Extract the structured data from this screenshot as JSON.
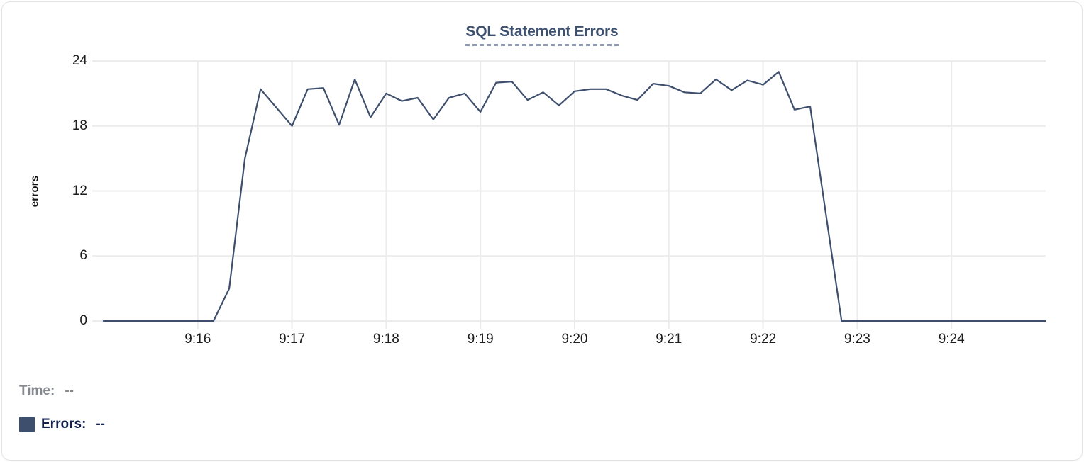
{
  "chart_data": {
    "type": "line",
    "title": "SQL Statement Errors",
    "ylabel": "errors",
    "xlabel": "",
    "ylim": [
      0,
      24
    ],
    "y_ticks": [
      0,
      6,
      12,
      18,
      24
    ],
    "x_ticks": [
      "9:16",
      "9:17",
      "9:18",
      "9:19",
      "9:20",
      "9:21",
      "9:22",
      "9:23",
      "9:24"
    ],
    "x_domain": [
      "9:15:00",
      "9:25:00"
    ],
    "grid": true,
    "legend_position": "bottom-left",
    "series": [
      {
        "name": "Errors",
        "color": "#3E4F6D",
        "points": [
          [
            "9:15:00",
            0
          ],
          [
            "9:15:10",
            0
          ],
          [
            "9:15:20",
            0
          ],
          [
            "9:15:30",
            0
          ],
          [
            "9:15:40",
            0
          ],
          [
            "9:15:50",
            0
          ],
          [
            "9:16:00",
            0
          ],
          [
            "9:16:10",
            0
          ],
          [
            "9:16:20",
            3
          ],
          [
            "9:16:30",
            15
          ],
          [
            "9:16:40",
            21.4
          ],
          [
            "9:16:50",
            19.7
          ],
          [
            "9:17:00",
            18
          ],
          [
            "9:17:10",
            21.4
          ],
          [
            "9:17:20",
            21.5
          ],
          [
            "9:17:30",
            18.1
          ],
          [
            "9:17:40",
            22.3
          ],
          [
            "9:17:50",
            18.8
          ],
          [
            "9:18:00",
            21
          ],
          [
            "9:18:10",
            20.3
          ],
          [
            "9:18:20",
            20.6
          ],
          [
            "9:18:30",
            18.6
          ],
          [
            "9:18:40",
            20.6
          ],
          [
            "9:18:50",
            21
          ],
          [
            "9:19:00",
            19.3
          ],
          [
            "9:19:10",
            22
          ],
          [
            "9:19:20",
            22.1
          ],
          [
            "9:19:30",
            20.4
          ],
          [
            "9:19:40",
            21.1
          ],
          [
            "9:19:50",
            19.9
          ],
          [
            "9:20:00",
            21.2
          ],
          [
            "9:20:10",
            21.4
          ],
          [
            "9:20:20",
            21.4
          ],
          [
            "9:20:30",
            20.8
          ],
          [
            "9:20:40",
            20.4
          ],
          [
            "9:20:50",
            21.9
          ],
          [
            "9:21:00",
            21.7
          ],
          [
            "9:21:10",
            21.1
          ],
          [
            "9:21:20",
            21
          ],
          [
            "9:21:30",
            22.3
          ],
          [
            "9:21:40",
            21.3
          ],
          [
            "9:21:50",
            22.2
          ],
          [
            "9:22:00",
            21.8
          ],
          [
            "9:22:10",
            23
          ],
          [
            "9:22:20",
            19.5
          ],
          [
            "9:22:30",
            19.8
          ],
          [
            "9:22:40",
            9.9
          ],
          [
            "9:22:50",
            0
          ],
          [
            "9:23:00",
            0
          ],
          [
            "9:23:10",
            0
          ],
          [
            "9:23:20",
            0
          ],
          [
            "9:23:30",
            0
          ],
          [
            "9:23:40",
            0
          ],
          [
            "9:23:50",
            0
          ],
          [
            "9:24:00",
            0
          ],
          [
            "9:24:10",
            0
          ],
          [
            "9:24:20",
            0
          ],
          [
            "9:24:30",
            0
          ],
          [
            "9:24:40",
            0
          ],
          [
            "9:24:50",
            0
          ],
          [
            "9:25:00",
            0
          ]
        ]
      }
    ]
  },
  "readout": {
    "time_label": "Time:",
    "time_value": "--",
    "errors_label": "Errors:",
    "errors_value": "--",
    "swatch_color": "#3E4F6D"
  },
  "colors": {
    "line": "#3E4F6D",
    "title_text": "#3D5070",
    "title_underline": "#8E9CBA",
    "grid_line": "#ECECEC",
    "axis_text": "#1C1C1E",
    "time_text": "#85898F",
    "errors_text": "#14234E",
    "card_border": "#E3E3E3"
  }
}
